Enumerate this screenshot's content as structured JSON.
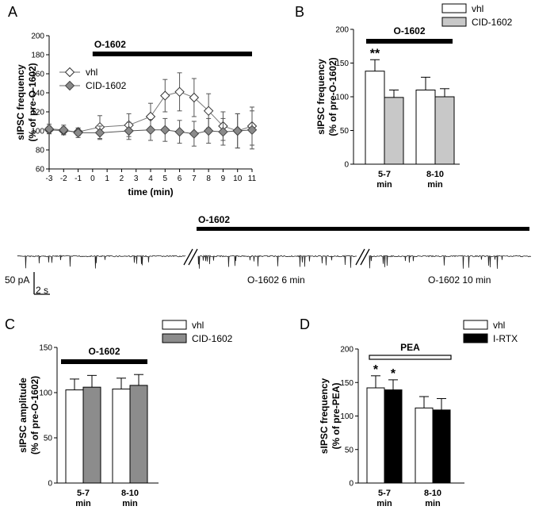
{
  "chart_data": [
    {
      "panel": "A",
      "type": "line",
      "drug_label": "O-1602",
      "drug_bar_range": [
        0,
        11
      ],
      "xlabel": "time (min)",
      "ylabel": "sIPSC frequency (% of pre-O-1602)",
      "ylabel_lines": [
        "sIPSC frequency",
        "(% of pre-O-1602)"
      ],
      "x": [
        -3,
        -2,
        -1,
        0,
        1,
        2,
        3,
        4,
        5,
        6,
        7,
        8,
        9,
        10,
        11
      ],
      "xticks": [
        -3,
        -2,
        -1,
        0,
        1,
        2,
        3,
        4,
        5,
        6,
        7,
        8,
        9,
        10,
        11
      ],
      "ylim": [
        60,
        200
      ],
      "yticks": [
        60,
        80,
        100,
        120,
        140,
        160,
        180,
        200
      ],
      "legend_position": "top-left",
      "series": [
        {
          "name": "vhl",
          "marker": "open-diamond",
          "points": [
            {
              "x": -3,
              "y": 101,
              "err": 4
            },
            {
              "x": -2,
              "y": 100,
              "err": 4
            },
            {
              "x": -1,
              "y": 99,
              "err": 4
            },
            {
              "x": 0.5,
              "y": 104,
              "err": 12
            },
            {
              "x": 2.5,
              "y": 106,
              "err": 12
            },
            {
              "x": 4,
              "y": 115,
              "err": 14
            },
            {
              "x": 5,
              "y": 137,
              "err": 17
            },
            {
              "x": 6,
              "y": 141,
              "err": 20
            },
            {
              "x": 7,
              "y": 135,
              "err": 20
            },
            {
              "x": 8,
              "y": 121,
              "err": 18
            },
            {
              "x": 9,
              "y": 105,
              "err": 15
            },
            {
              "x": 10,
              "y": 100,
              "err": 18
            },
            {
              "x": 11,
              "y": 105,
              "err": 20
            }
          ]
        },
        {
          "name": "CID-1602",
          "marker": "filled-diamond",
          "points": [
            {
              "x": -3,
              "y": 102,
              "err": 5
            },
            {
              "x": -2,
              "y": 101,
              "err": 5
            },
            {
              "x": -1,
              "y": 98,
              "err": 5
            },
            {
              "x": 0.5,
              "y": 98,
              "err": 7
            },
            {
              "x": 2.5,
              "y": 100,
              "err": 9
            },
            {
              "x": 4,
              "y": 101,
              "err": 11
            },
            {
              "x": 5,
              "y": 101,
              "err": 12
            },
            {
              "x": 6,
              "y": 99,
              "err": 12
            },
            {
              "x": 7,
              "y": 97,
              "err": 13
            },
            {
              "x": 8,
              "y": 100,
              "err": 13
            },
            {
              "x": 9,
              "y": 99,
              "err": 14
            },
            {
              "x": 10,
              "y": 100,
              "err": 18
            },
            {
              "x": 11,
              "y": 101,
              "err": 20
            }
          ]
        }
      ]
    },
    {
      "panel": "B",
      "type": "bar",
      "drug_label": "O-1602",
      "ylabel": "sIPSC frequency (% of pre-O-1602)",
      "ylabel_lines": [
        "sIPSC frequency",
        "(% of pre-O-1602)"
      ],
      "categories": [
        "5-7 min",
        "8-10 min"
      ],
      "category_lines": [
        [
          "5-7",
          "min"
        ],
        [
          "8-10",
          "min"
        ]
      ],
      "ylim": [
        0,
        200
      ],
      "yticks": [
        0,
        50,
        100,
        150,
        200
      ],
      "legend_position": "top-right",
      "series": [
        {
          "name": "vhl",
          "color": "#ffffff",
          "values": [
            138,
            110
          ],
          "errors": [
            17,
            19
          ],
          "significance": [
            "**",
            ""
          ]
        },
        {
          "name": "CID-1602",
          "color": "#c8c8c8",
          "values": [
            99,
            100
          ],
          "errors": [
            11,
            12
          ],
          "significance": [
            "",
            ""
          ]
        }
      ]
    },
    {
      "panel": "C",
      "type": "bar",
      "drug_label": "O-1602",
      "ylabel": "sIPSC amplitude (% of pre-O-1602)",
      "ylabel_lines": [
        "sIPSC amplitude",
        "(% of pre-O-1602)"
      ],
      "categories": [
        "5-7 min",
        "8-10 min"
      ],
      "category_lines": [
        [
          "5-7",
          "min"
        ],
        [
          "8-10",
          "min"
        ]
      ],
      "ylim": [
        0,
        150
      ],
      "yticks": [
        0,
        50,
        100,
        150
      ],
      "legend_position": "top-right",
      "series": [
        {
          "name": "vhl",
          "color": "#ffffff",
          "values": [
            103,
            104
          ],
          "errors": [
            12,
            12
          ],
          "significance": [
            "",
            ""
          ]
        },
        {
          "name": "CID-1602",
          "color": "#8c8c8c",
          "values": [
            106,
            108
          ],
          "errors": [
            13,
            12
          ],
          "significance": [
            "",
            ""
          ]
        }
      ]
    },
    {
      "panel": "D",
      "type": "bar",
      "drug_label": "PEA",
      "ylabel": "sIPSC frequency (% of pre-PEA)",
      "ylabel_lines": [
        "sIPSC frequency",
        "(% of pre-PEA)"
      ],
      "categories": [
        "5-7 min",
        "8-10 min"
      ],
      "category_lines": [
        [
          "5-7",
          "min"
        ],
        [
          "8-10",
          "min"
        ]
      ],
      "ylim": [
        0,
        200
      ],
      "yticks": [
        0,
        50,
        100,
        150,
        200
      ],
      "legend_position": "top-right",
      "series": [
        {
          "name": "vhl",
          "color": "#ffffff",
          "values": [
            142,
            112
          ],
          "errors": [
            18,
            17
          ],
          "significance": [
            "*",
            ""
          ]
        },
        {
          "name": "I-RTX",
          "color": "#000000",
          "values": [
            139,
            109
          ],
          "errors": [
            15,
            17
          ],
          "significance": [
            "*",
            ""
          ]
        }
      ]
    }
  ],
  "trace": {
    "drug_label": "O-1602",
    "scalebar_amplitude": "50 pA",
    "scalebar_time": "2 s",
    "segment_labels": [
      "O-1602  6 min",
      "O-1602  10 min"
    ]
  },
  "panel_labels": [
    "A",
    "B",
    "C",
    "D"
  ],
  "colors": {
    "axis": "#000000",
    "gray_light": "#c8c8c8",
    "gray_dark": "#8c8c8c",
    "trace": "#222222"
  }
}
